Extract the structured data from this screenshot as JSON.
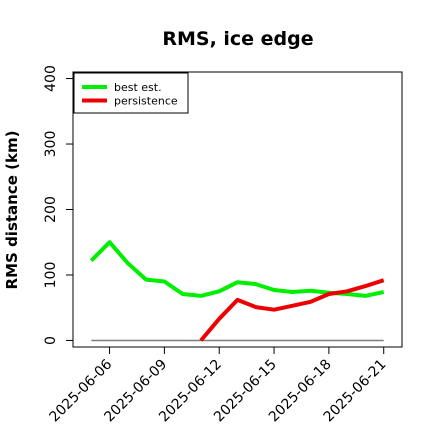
{
  "chart_data": {
    "type": "line",
    "title": "RMS, ice edge",
    "xlabel": "",
    "ylabel": "RMS distance (km)",
    "x": [
      "2025-06-05",
      "2025-06-06",
      "2025-06-07",
      "2025-06-08",
      "2025-06-09",
      "2025-06-10",
      "2025-06-11",
      "2025-06-12",
      "2025-06-13",
      "2025-06-14",
      "2025-06-15",
      "2025-06-16",
      "2025-06-17",
      "2025-06-18",
      "2025-06-19",
      "2025-06-20",
      "2025-06-21"
    ],
    "x_tick_labels": [
      "2025-06-06",
      "2025-06-09",
      "2025-06-12",
      "2025-06-15",
      "2025-06-18",
      "2025-06-21"
    ],
    "xlim": [
      "2025-06-04",
      "2025-06-22"
    ],
    "ylim": [
      -10,
      410
    ],
    "y_ticks": [
      0,
      100,
      200,
      300,
      400
    ],
    "grid": false,
    "legend_position": "top-left",
    "baseline": {
      "value": 0,
      "color": "#7f7f7f"
    },
    "series": [
      {
        "name": "best est.",
        "color": "#00ee00",
        "values": [
          122,
          150,
          118,
          93,
          90,
          71,
          68,
          75,
          89,
          86,
          77,
          74,
          76,
          73,
          71,
          68,
          74
        ]
      },
      {
        "name": "persistence",
        "color": "#ee0000",
        "values": [
          null,
          null,
          null,
          null,
          null,
          null,
          0,
          33,
          62,
          51,
          47,
          53,
          59,
          71,
          75,
          83,
          92
        ]
      }
    ]
  }
}
